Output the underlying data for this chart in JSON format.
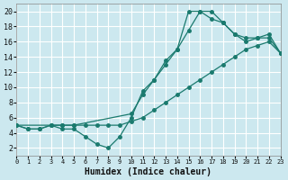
{
  "xlabel": "Humidex (Indice chaleur)",
  "bg_color": "#cce8ef",
  "grid_color": "#ffffff",
  "line_color": "#1a7a6e",
  "xlim": [
    0,
    23
  ],
  "ylim": [
    1,
    21
  ],
  "xticks": [
    0,
    1,
    2,
    3,
    4,
    5,
    6,
    7,
    8,
    9,
    10,
    11,
    12,
    13,
    14,
    15,
    16,
    17,
    18,
    19,
    20,
    21,
    22,
    23
  ],
  "yticks": [
    2,
    4,
    6,
    8,
    10,
    12,
    14,
    16,
    18,
    20
  ],
  "line1_x": [
    0,
    1,
    2,
    3,
    4,
    5,
    6,
    7,
    8,
    9,
    10,
    11,
    12,
    13,
    14,
    15,
    16,
    17,
    18,
    19,
    20,
    21,
    22,
    23
  ],
  "line1_y": [
    5,
    4.5,
    4.5,
    5,
    4.5,
    4.5,
    3.5,
    2.5,
    2,
    3.5,
    6,
    9.5,
    11,
    13,
    15,
    17.5,
    20,
    20,
    18.5,
    17,
    16.5,
    16.5,
    16.5,
    14.5
  ],
  "line2_x": [
    0,
    1,
    2,
    3,
    4,
    5,
    6,
    7,
    8,
    9,
    10,
    11,
    12,
    13,
    14,
    15,
    16,
    17,
    18,
    19,
    20,
    21,
    22,
    23
  ],
  "line2_y": [
    5,
    4.5,
    4.5,
    5,
    5,
    5,
    5,
    5,
    5,
    5,
    5.5,
    6,
    7,
    8,
    9,
    10,
    11,
    12,
    13,
    14,
    15,
    15.5,
    16,
    14.5
  ],
  "line3_x": [
    0,
    3,
    4,
    5,
    10,
    11,
    12,
    13,
    14,
    15,
    16,
    17,
    18,
    19,
    20,
    21,
    22,
    23
  ],
  "line3_y": [
    5,
    5,
    5,
    5,
    6.5,
    9,
    11,
    13.5,
    15,
    20,
    20,
    19,
    18.5,
    17,
    16,
    16.5,
    17,
    14.5
  ]
}
